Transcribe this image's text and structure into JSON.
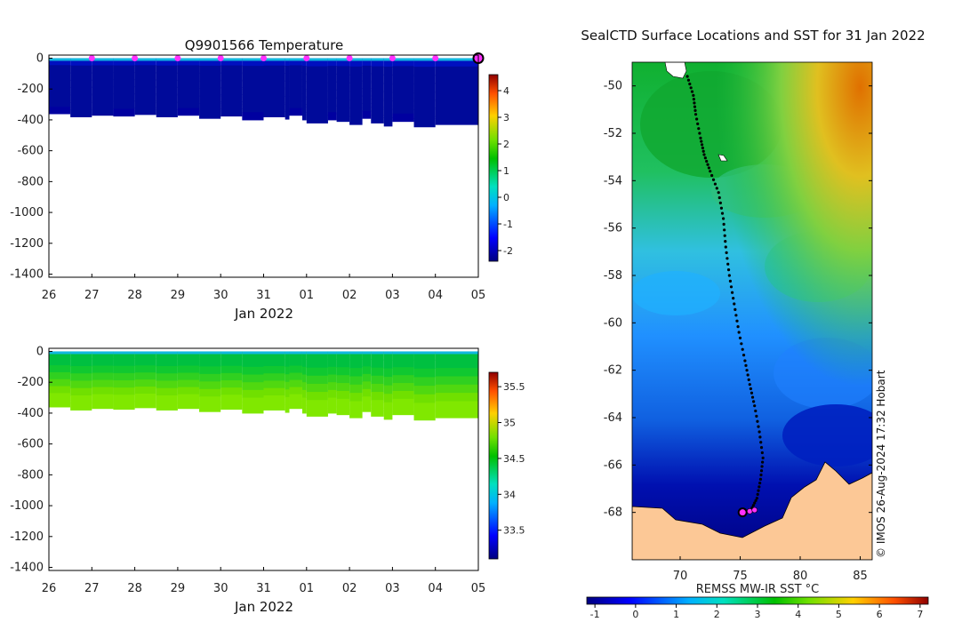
{
  "chart_data": [
    {
      "type": "heatmap",
      "title": "Q9901566  Temperature",
      "xlabel": "Jan 2022",
      "x_tick_labels": [
        "26",
        "27",
        "28",
        "29",
        "30",
        "31",
        "01",
        "02",
        "03",
        "04",
        "05"
      ],
      "y_tick_values": [
        0,
        -200,
        -400,
        -600,
        -800,
        -1000,
        -1200,
        -1400
      ],
      "ylim": [
        -1420,
        20
      ],
      "colorbar": {
        "min": -2.4,
        "max": 4.6,
        "ticks": [
          4,
          3,
          2,
          1,
          0,
          -1,
          -2
        ]
      },
      "profile_day_offsets": [
        0,
        0.5,
        1,
        1.5,
        2,
        2.5,
        3,
        3.5,
        4,
        4.5,
        5,
        5.5,
        5.6,
        5.9,
        6,
        6.5,
        6.7,
        7,
        7.3,
        7.5,
        7.8,
        8,
        8.5,
        9
      ],
      "max_depths": [
        360,
        380,
        370,
        375,
        365,
        380,
        370,
        390,
        375,
        400,
        380,
        395,
        370,
        400,
        420,
        400,
        410,
        430,
        390,
        420,
        440,
        410,
        445,
        430
      ],
      "surface_marker_days": [
        1,
        2,
        3,
        4,
        5,
        6,
        7,
        8,
        9
      ],
      "last_profile_day": 10
    },
    {
      "type": "heatmap",
      "title": "",
      "xlabel": "Jan 2022",
      "x_tick_labels": [
        "26",
        "27",
        "28",
        "29",
        "30",
        "31",
        "01",
        "02",
        "03",
        "04",
        "05"
      ],
      "y_tick_values": [
        0,
        -200,
        -400,
        -600,
        -800,
        -1000,
        -1200,
        -1400
      ],
      "ylim": [
        -1420,
        20
      ],
      "colorbar": {
        "min": 33.1,
        "max": 35.7,
        "ticks": [
          35.5,
          35,
          34.5,
          34,
          33.5
        ]
      }
    },
    {
      "type": "heatmap",
      "title": "SealCTD Surface Locations and SST for 31 Jan 2022",
      "xlabel": "",
      "x_tick_values": [
        70,
        75,
        80,
        85
      ],
      "y_tick_values": [
        -50,
        -52,
        -54,
        -56,
        -58,
        -60,
        -62,
        -64,
        -66,
        -68
      ],
      "xlim": [
        66,
        86
      ],
      "ylim": [
        -70,
        -49
      ],
      "colorbar": {
        "label": "REMSS MW-IR SST °C",
        "min": -1.2,
        "max": 7.2,
        "ticks": [
          -1,
          0,
          1,
          2,
          3,
          4,
          5,
          6,
          7
        ]
      },
      "track": [
        [
          70.6,
          -49.6
        ],
        [
          71.1,
          -50.4
        ],
        [
          71.3,
          -51.2
        ],
        [
          71.7,
          -52.2
        ],
        [
          72.0,
          -52.9
        ],
        [
          72.5,
          -53.6
        ],
        [
          73.2,
          -54.5
        ],
        [
          73.6,
          -55.6
        ],
        [
          73.8,
          -56.8
        ],
        [
          74.1,
          -58.0
        ],
        [
          74.5,
          -59.2
        ],
        [
          74.9,
          -60.4
        ],
        [
          75.4,
          -61.6
        ],
        [
          75.8,
          -62.6
        ],
        [
          76.2,
          -63.5
        ],
        [
          76.6,
          -64.6
        ],
        [
          76.9,
          -65.7
        ],
        [
          76.7,
          -66.6
        ],
        [
          76.4,
          -67.4
        ],
        [
          75.9,
          -67.9
        ],
        [
          75.2,
          -68.0
        ]
      ],
      "markers": [
        [
          75.2,
          -68.0
        ],
        [
          75.8,
          -67.95
        ],
        [
          76.2,
          -67.9
        ]
      ],
      "credit": "© IMOS 26-Aug-2024 17:32 Hobart"
    }
  ]
}
